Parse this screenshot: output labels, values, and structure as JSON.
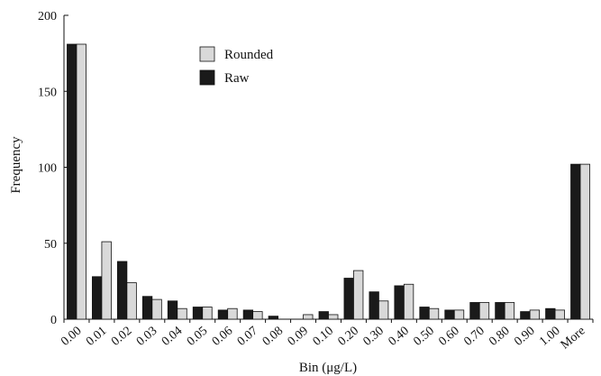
{
  "chart_data": {
    "type": "bar",
    "xlabel": "Bin (μg/L)",
    "ylabel": "Frequency",
    "ylim": [
      0,
      200
    ],
    "yticks": [
      0,
      50,
      100,
      150,
      200
    ],
    "categories": [
      "0.00",
      "0.01",
      "0.02",
      "0.03",
      "0.04",
      "0.05",
      "0.06",
      "0.07",
      "0.08",
      "0.09",
      "0.10",
      "0.20",
      "0.30",
      "0.40",
      "0.50",
      "0.60",
      "0.70",
      "0.80",
      "0.90",
      "1.00",
      "More"
    ],
    "series": [
      {
        "name": "Raw",
        "color": "#1a1a1a",
        "values": [
          181,
          28,
          38,
          15,
          12,
          8,
          6,
          6,
          2,
          0,
          5,
          27,
          18,
          22,
          8,
          6,
          11,
          11,
          5,
          7,
          102
        ]
      },
      {
        "name": "Rounded",
        "color": "#d9d9d9",
        "values": [
          181,
          51,
          24,
          13,
          7,
          8,
          7,
          5,
          0,
          3,
          3,
          32,
          12,
          23,
          7,
          6,
          11,
          11,
          6,
          6,
          102
        ]
      }
    ],
    "legend": {
      "position": "top-center",
      "order": [
        "Rounded",
        "Raw"
      ]
    },
    "grid": false
  }
}
